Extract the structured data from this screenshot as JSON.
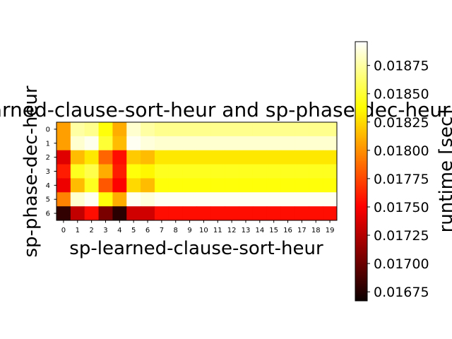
{
  "chart_data": {
    "type": "heatmap",
    "title": "sp-learned-clause-sort-heur and sp-phase-dec-heur",
    "xlabel": "sp-learned-clause-sort-heur",
    "ylabel": "sp-phase-dec-heur",
    "x": [
      0,
      1,
      2,
      3,
      4,
      5,
      6,
      7,
      8,
      9,
      10,
      11,
      12,
      13,
      14,
      15,
      16,
      17,
      18,
      19
    ],
    "y": [
      0,
      1,
      2,
      3,
      4,
      5,
      6
    ],
    "x_tick_labels": [
      "0",
      "1",
      "2",
      "3",
      "4",
      "5",
      "6",
      "7",
      "8",
      "9",
      "10",
      "11",
      "12",
      "13",
      "14",
      "15",
      "16",
      "17",
      "18",
      "19"
    ],
    "y_tick_labels": [
      "0",
      "1",
      "2",
      "3",
      "4",
      "5",
      "6"
    ],
    "colormap": "hot",
    "values": [
      [
        0.01805,
        0.01875,
        0.0187,
        0.0184,
        0.0181,
        0.01885,
        0.01875,
        0.0187,
        0.0187,
        0.0187,
        0.0187,
        0.0187,
        0.0187,
        0.0187,
        0.0187,
        0.0187,
        0.0187,
        0.0187,
        0.0187,
        0.0187
      ],
      [
        0.01805,
        0.01885,
        0.01892,
        0.0185,
        0.01815,
        0.01893,
        0.01888,
        0.01885,
        0.01885,
        0.01885,
        0.01885,
        0.01885,
        0.01885,
        0.01885,
        0.01885,
        0.01885,
        0.01885,
        0.01885,
        0.01885,
        0.01885
      ],
      [
        0.0174,
        0.01815,
        0.0183,
        0.01785,
        0.01755,
        0.0182,
        0.01815,
        0.0183,
        0.0183,
        0.0183,
        0.0183,
        0.0183,
        0.0183,
        0.0183,
        0.0183,
        0.0183,
        0.0183,
        0.0183,
        0.0183,
        0.0183
      ],
      [
        0.0176,
        0.01845,
        0.01855,
        0.0181,
        0.0176,
        0.0184,
        0.01835,
        0.01845,
        0.01845,
        0.01845,
        0.01845,
        0.01845,
        0.01845,
        0.01845,
        0.01845,
        0.01845,
        0.01845,
        0.01845,
        0.01845,
        0.01845
      ],
      [
        0.01745,
        0.01815,
        0.01845,
        0.0178,
        0.0175,
        0.01825,
        0.01815,
        0.0184,
        0.0184,
        0.0184,
        0.0184,
        0.0184,
        0.0184,
        0.0184,
        0.0184,
        0.0184,
        0.0184,
        0.0184,
        0.0184,
        0.0184
      ],
      [
        0.01795,
        0.01885,
        0.01893,
        0.0184,
        0.0181,
        0.01893,
        0.01888,
        0.01893,
        0.01893,
        0.01893,
        0.01893,
        0.01893,
        0.01893,
        0.01893,
        0.01893,
        0.01893,
        0.01893,
        0.01893,
        0.01893,
        0.01893
      ],
      [
        0.0168,
        0.0173,
        0.01755,
        0.01705,
        0.01678,
        0.01735,
        0.01735,
        0.01755,
        0.01755,
        0.01755,
        0.01755,
        0.01755,
        0.01755,
        0.01755,
        0.01755,
        0.01755,
        0.01755,
        0.01755,
        0.01755,
        0.01755
      ]
    ],
    "colorbar": {
      "label": "runtime [sec]",
      "range": [
        0.01667,
        0.01896
      ],
      "ticks": [
        0.01675,
        0.017,
        0.01725,
        0.0175,
        0.01775,
        0.018,
        0.01825,
        0.0185,
        0.01875
      ],
      "tick_labels": [
        "0.01675",
        "0.01700",
        "0.01725",
        "0.01750",
        "0.01775",
        "0.01800",
        "0.01825",
        "0.01850",
        "0.01875"
      ]
    }
  }
}
